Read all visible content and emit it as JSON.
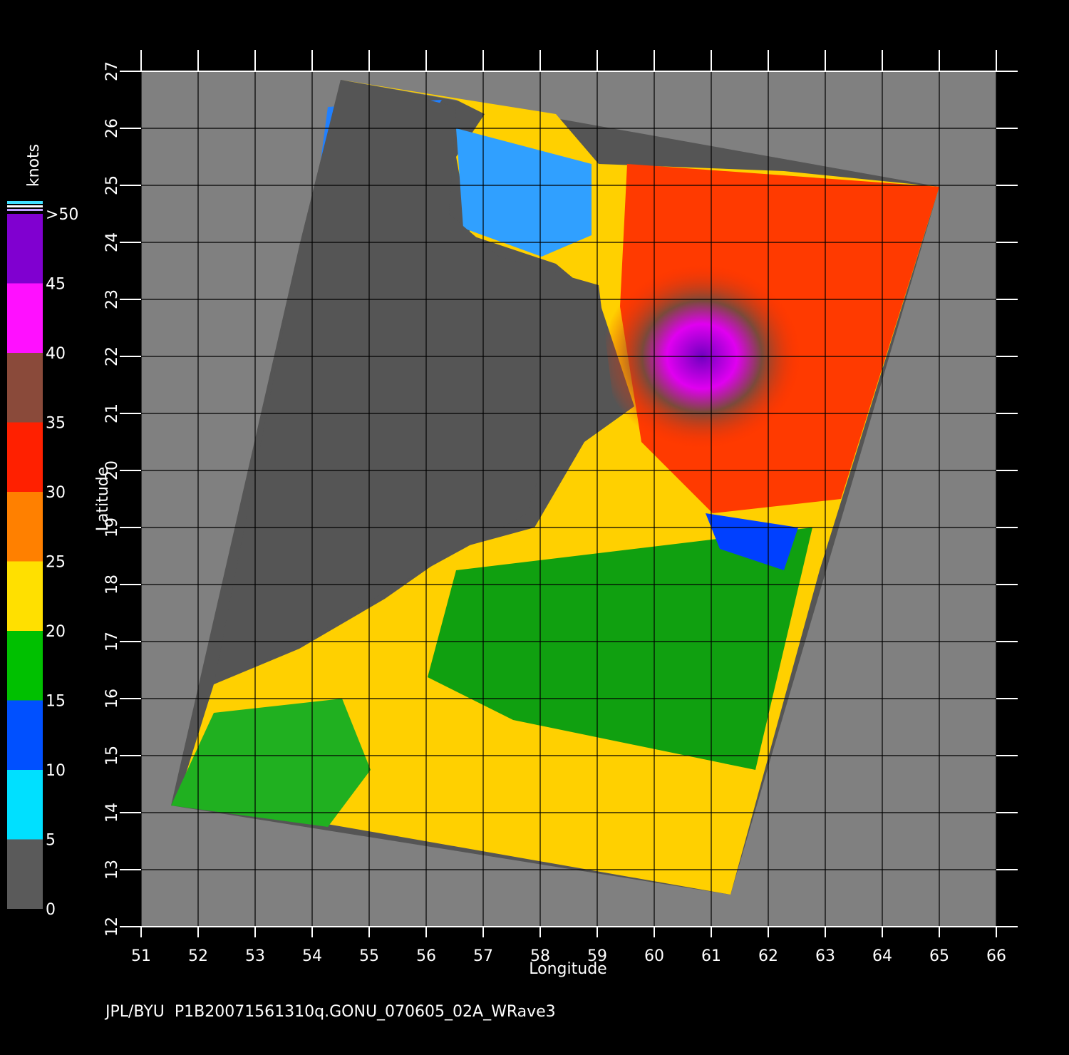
{
  "chart_data": {
    "type": "map",
    "xlabel": "Longitude",
    "ylabel": "Latitude",
    "xlim": [
      51,
      66
    ],
    "ylim": [
      12,
      27
    ],
    "xticks": [
      51,
      52,
      53,
      54,
      55,
      56,
      57,
      58,
      59,
      60,
      61,
      62,
      63,
      64,
      65,
      66
    ],
    "yticks": [
      12,
      13,
      14,
      15,
      16,
      17,
      18,
      19,
      20,
      21,
      22,
      23,
      24,
      25,
      26,
      27
    ],
    "grid": true,
    "colorbar": {
      "label": "knots",
      "lim": [
        0,
        50
      ],
      "ticks": [
        0,
        5,
        10,
        15,
        20,
        25,
        30,
        35,
        40,
        45,
        {
          "value": 50,
          "label": ">50"
        }
      ],
      "colors": [
        "#5a5a5a",
        "#00e0ff",
        "#0050ff",
        "#00c000",
        "#ffe000",
        "#ff8000",
        "#ff2000",
        "#8a4a3a",
        "#ff10ff",
        "#8000d0"
      ]
    },
    "footer": "JPL/BYU  P1B20071561310q.GONU_070605_02A_WRave3"
  }
}
